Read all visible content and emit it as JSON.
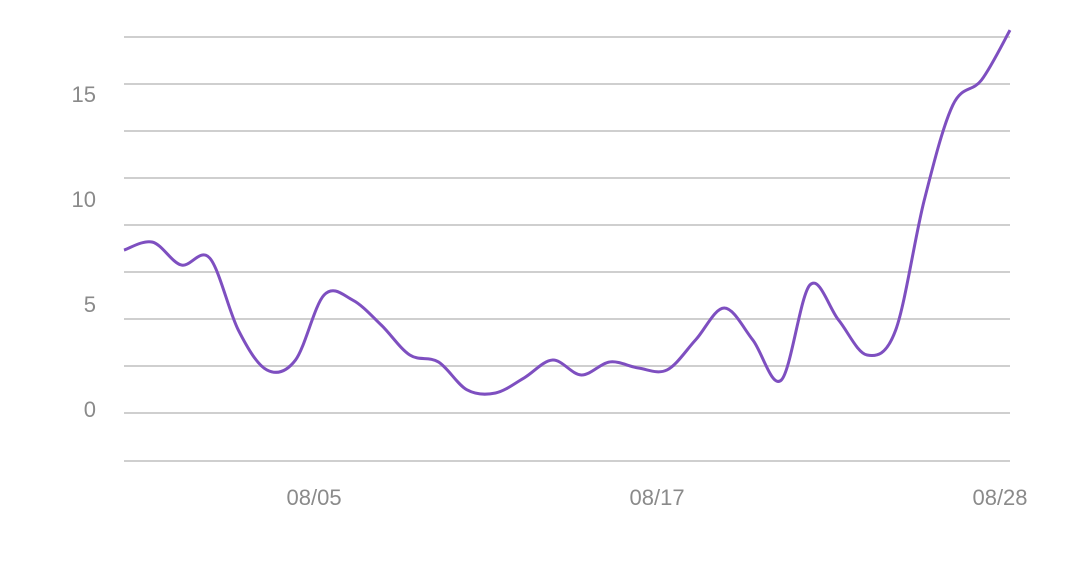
{
  "chart_data": {
    "type": "line",
    "categories": [
      null,
      null,
      null,
      null,
      null,
      null,
      null,
      "08/05",
      null,
      null,
      null,
      null,
      null,
      null,
      null,
      null,
      null,
      null,
      null,
      "08/17",
      null,
      null,
      null,
      null,
      null,
      null,
      null,
      null,
      null,
      null,
      null,
      "08/28"
    ],
    "series": [
      {
        "color": "#7e4fc0",
        "values": [
          7.76,
          8.14,
          7.05,
          7.38,
          3.95,
          2.05,
          2.52,
          5.62,
          5.38,
          4.19,
          2.76,
          2.43,
          1.1,
          0.95,
          1.67,
          2.52,
          1.81,
          2.43,
          2.14,
          2.05,
          3.48,
          5.0,
          3.48,
          1.57,
          6.1,
          4.43,
          2.76,
          3.95,
          10.14,
          14.67,
          15.86,
          18.24
        ]
      }
    ],
    "ylim": [
      -2.29,
      18.2
    ],
    "yticks": [
      0,
      5,
      10,
      15
    ],
    "grid": true
  }
}
